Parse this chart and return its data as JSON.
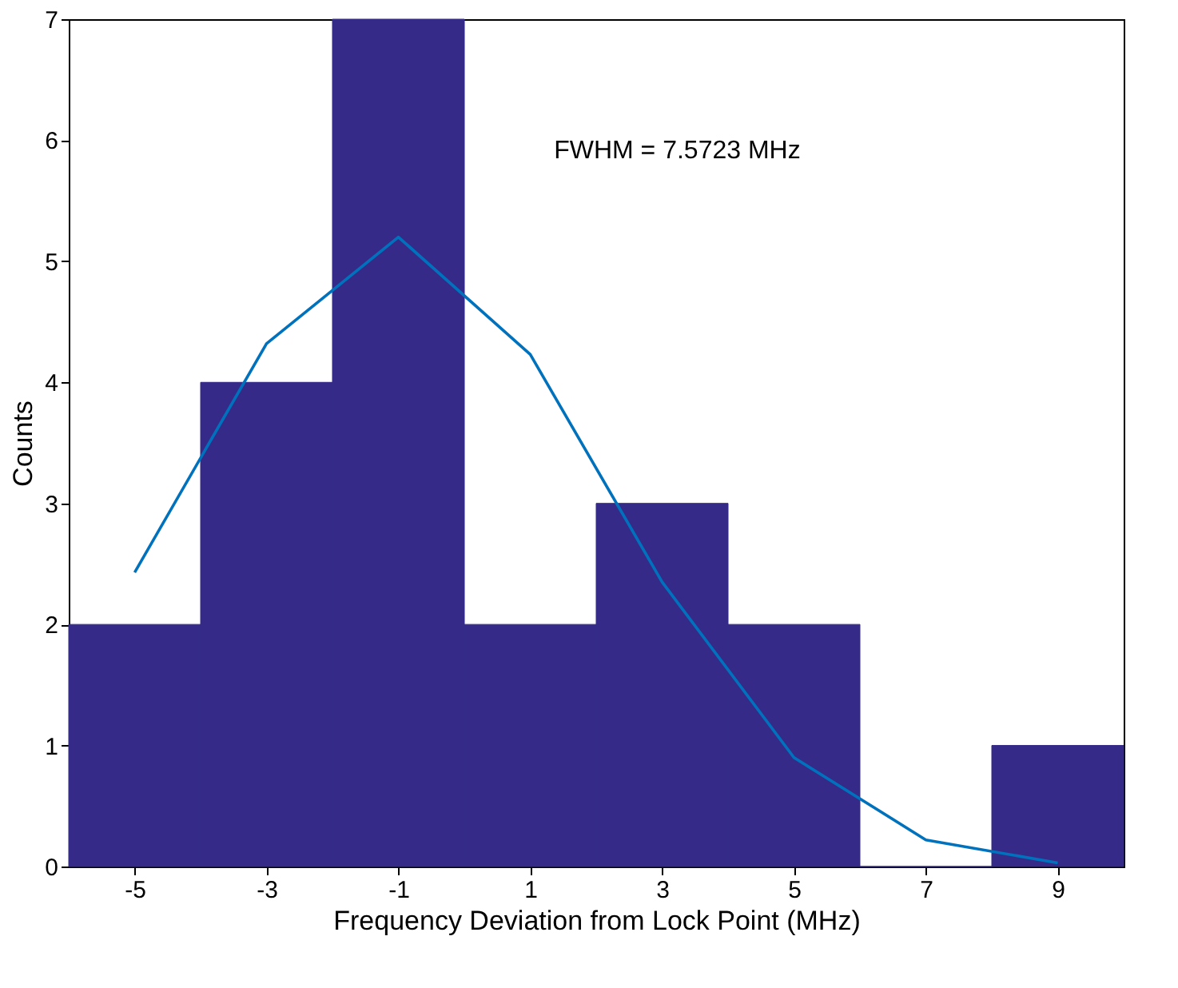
{
  "chart_data": {
    "type": "histogram",
    "xlabel": "Frequency Deviation from Lock Point (MHz)",
    "ylabel": "Counts",
    "bins": [
      -6,
      -4,
      -2,
      0,
      2,
      4,
      6,
      8,
      10
    ],
    "values": [
      2,
      4,
      7,
      2,
      3,
      2,
      0,
      1
    ],
    "color": "#352a87",
    "series": [
      {
        "type": "line",
        "color": "#0072bd",
        "x": [
          -5,
          -3,
          -1,
          1,
          3,
          5,
          7,
          9
        ],
        "values": [
          2.43,
          4.32,
          5.2,
          4.23,
          2.35,
          0.9,
          0.22,
          0.03
        ]
      }
    ],
    "annotations": [
      "FWHM = 7.5723 MHz"
    ],
    "xlim": [
      -6,
      10
    ],
    "xticks": [
      -5,
      -3,
      -1,
      1,
      3,
      5,
      7,
      9
    ],
    "ylim": [
      0,
      7
    ],
    "yticks": [
      0,
      1,
      2,
      3,
      4,
      5,
      6,
      7
    ],
    "grid": false,
    "marker": "none"
  }
}
